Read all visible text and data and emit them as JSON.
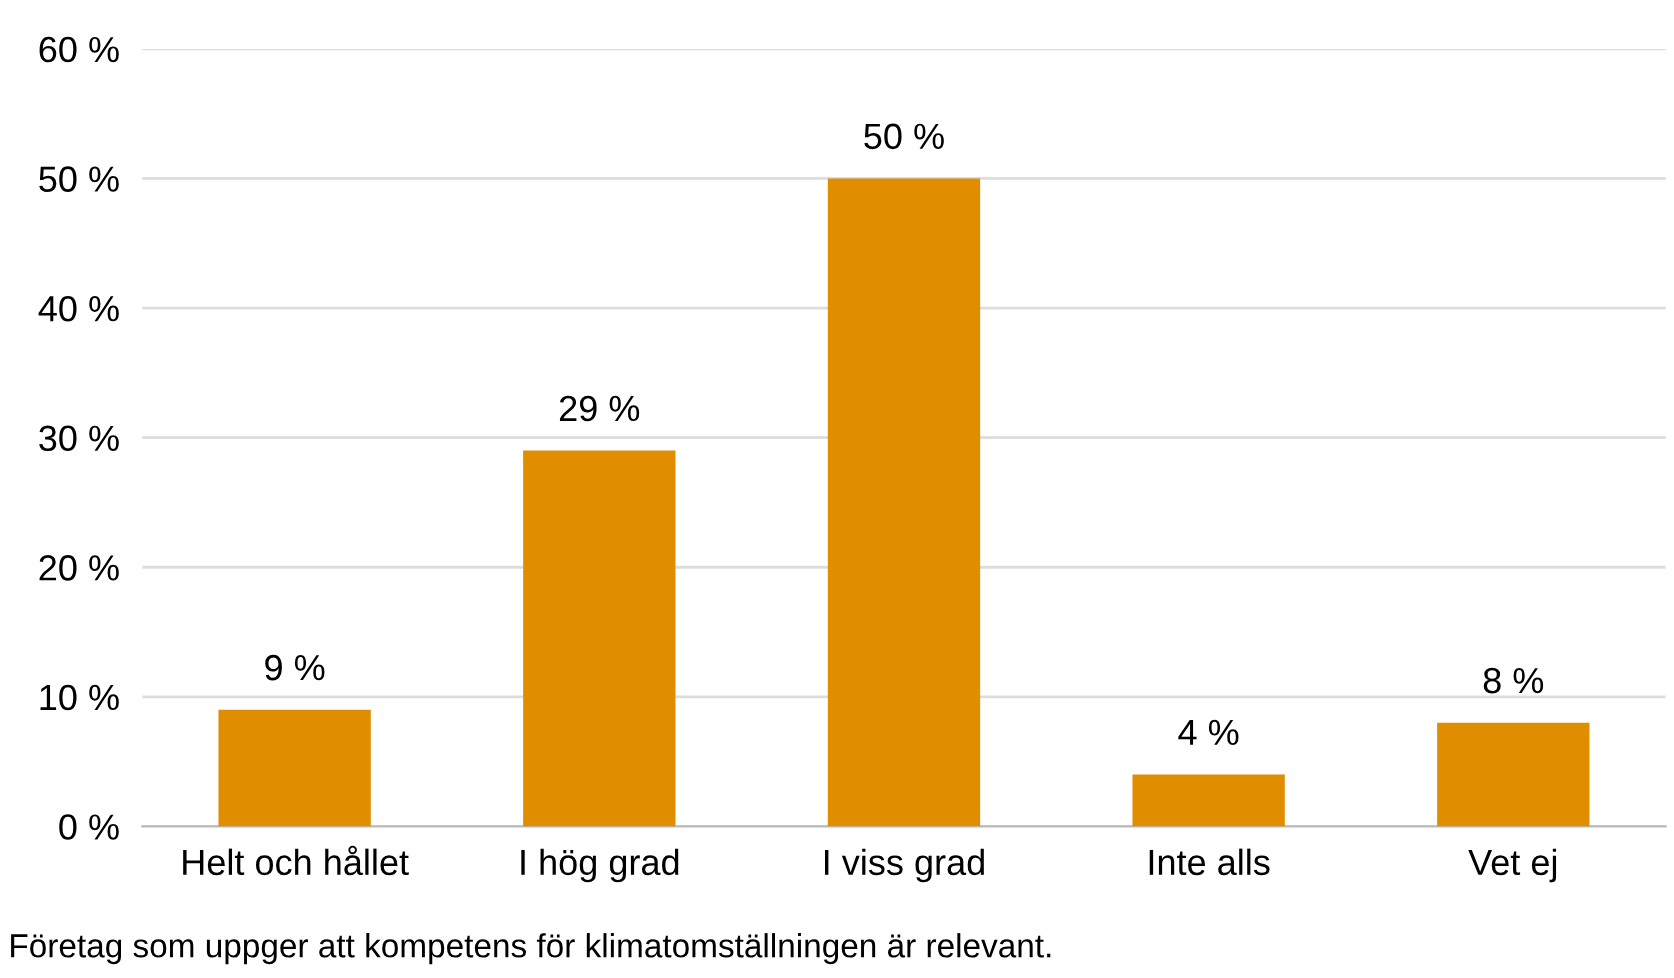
{
  "chart_data": {
    "type": "bar",
    "categories": [
      "Helt och hållet",
      "I hög grad",
      "I viss grad",
      "Inte alls",
      "Vet ej"
    ],
    "values": [
      9,
      29,
      50,
      4,
      8
    ],
    "value_labels": [
      "9 %",
      "29 %",
      "50 %",
      "4 %",
      "8 %"
    ],
    "color": "#e08e00",
    "ylim": [
      0,
      60
    ],
    "yticks": [
      {
        "value": 0,
        "label": "0 %"
      },
      {
        "value": 10,
        "label": "10 %"
      },
      {
        "value": 20,
        "label": "20 %"
      },
      {
        "value": 30,
        "label": "30 %"
      },
      {
        "value": 40,
        "label": "40 %"
      },
      {
        "value": 50,
        "label": "50 %"
      },
      {
        "value": 60,
        "label": "60 %"
      }
    ],
    "grid": "y",
    "annotations": [
      "Företag som uppger att kompetens för klimatomställningen är relevant."
    ]
  }
}
